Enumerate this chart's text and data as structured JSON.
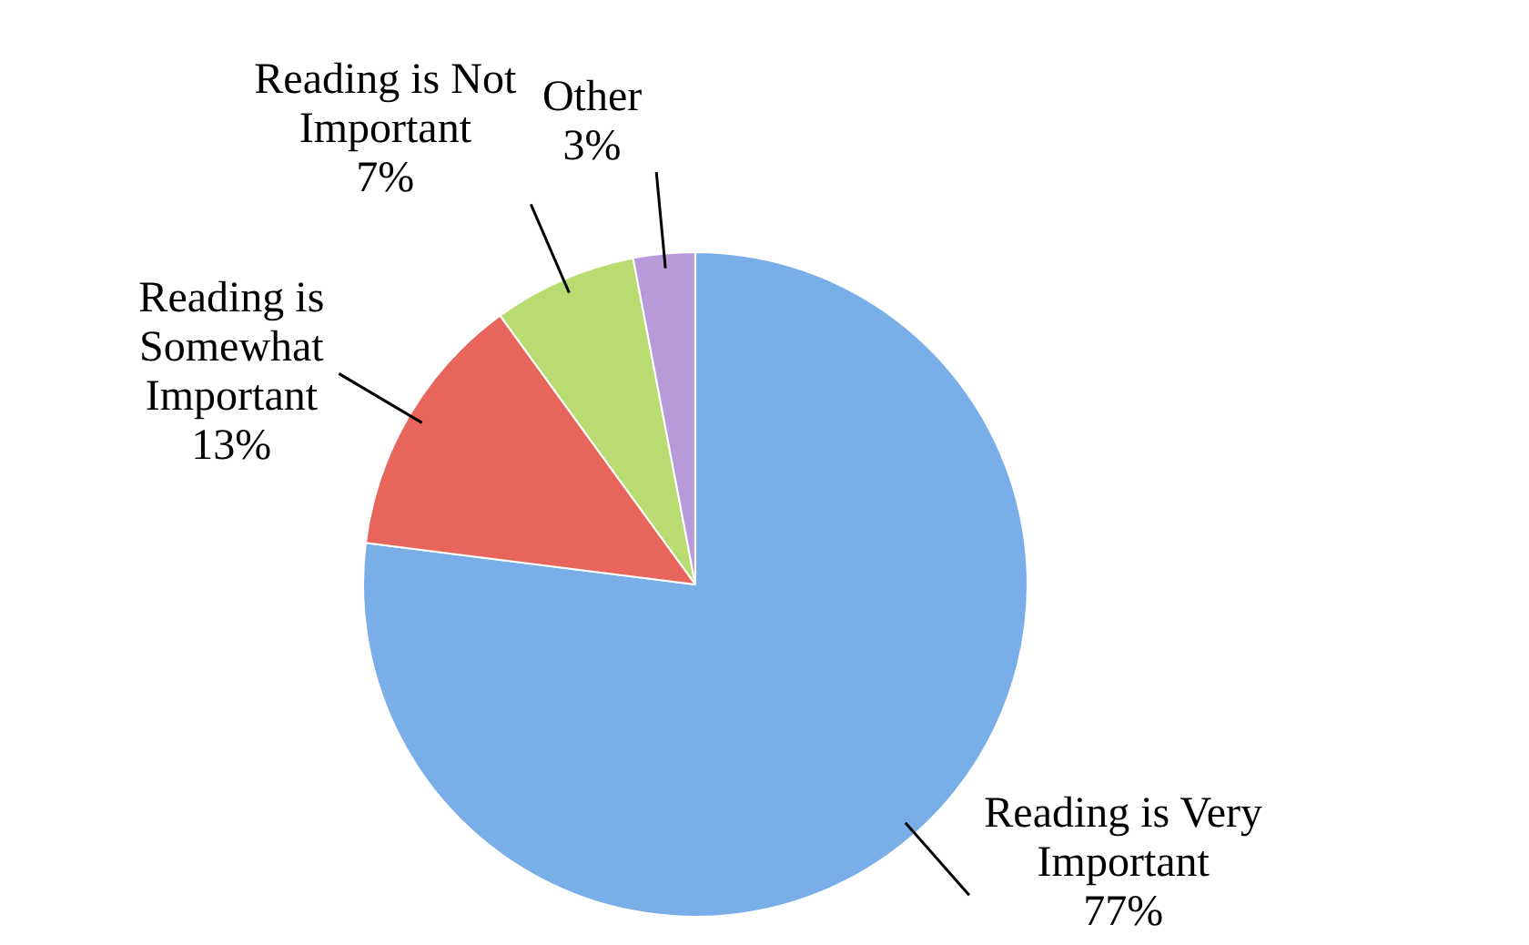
{
  "chart_data": {
    "type": "pie",
    "categories": [
      "Reading is Very Important",
      "Reading is Somewhat Important",
      "Reading is Not Important",
      "Other"
    ],
    "values": [
      77,
      13,
      7,
      3
    ],
    "value_labels": [
      "77%",
      "13%",
      "7%",
      "3%"
    ],
    "colors": [
      "#7aaee8",
      "#e8655b",
      "#b9dc72",
      "#b89ad9"
    ],
    "legend": false
  }
}
